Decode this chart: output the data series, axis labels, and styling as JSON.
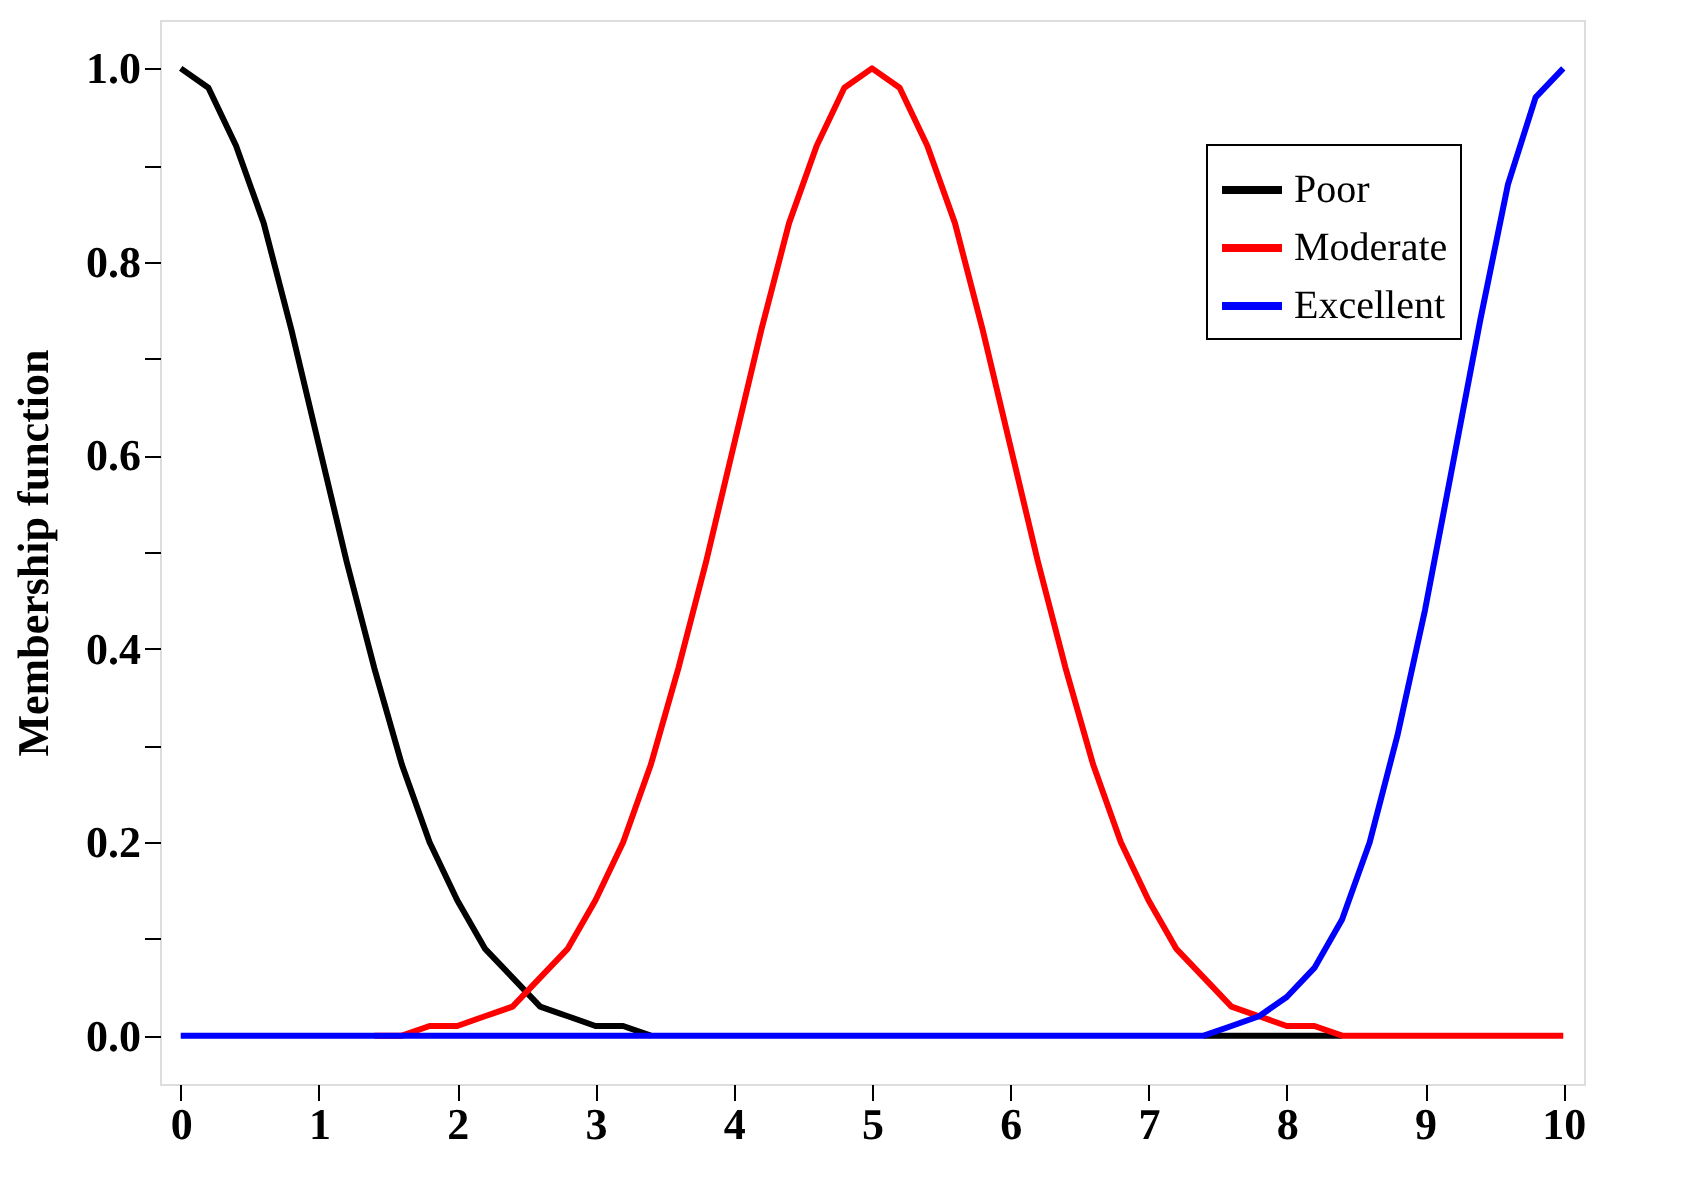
{
  "chart_data": {
    "type": "line",
    "ylabel": "Membership function",
    "x": [
      0,
      0.2,
      0.4,
      0.6,
      0.8,
      1,
      1.2,
      1.4,
      1.6,
      1.8,
      2,
      2.2,
      2.4,
      2.6,
      2.8,
      3,
      3.2,
      3.4,
      3.6,
      3.8,
      4,
      4.2,
      4.4,
      4.6,
      4.8,
      5,
      5.2,
      5.4,
      5.6,
      5.8,
      6,
      6.2,
      6.4,
      6.6,
      6.8,
      7,
      7.2,
      7.4,
      7.6,
      7.8,
      8,
      8.2,
      8.4,
      8.6,
      8.8,
      9,
      9.2,
      9.4,
      9.6,
      9.8,
      10
    ],
    "series": [
      {
        "name": "Poor",
        "color": "#000000",
        "values": [
          1.0,
          0.98,
          0.92,
          0.84,
          0.73,
          0.61,
          0.49,
          0.38,
          0.28,
          0.2,
          0.14,
          0.09,
          0.06,
          0.03,
          0.02,
          0.01,
          0.01,
          0,
          null,
          null,
          null,
          null,
          null,
          null,
          null,
          null,
          null,
          null,
          null,
          null,
          null,
          null,
          null,
          null,
          null,
          null,
          null,
          0,
          0,
          0,
          0,
          0,
          0,
          null,
          null,
          null,
          null,
          null,
          null,
          null,
          null
        ]
      },
      {
        "name": "Moderate",
        "color": "#ff0000",
        "values": [
          null,
          null,
          null,
          null,
          null,
          null,
          null,
          0,
          0,
          0.01,
          0.01,
          0.02,
          0.03,
          0.06,
          0.09,
          0.14,
          0.2,
          0.28,
          0.38,
          0.49,
          0.61,
          0.73,
          0.84,
          0.92,
          0.98,
          1.0,
          0.98,
          0.92,
          0.84,
          0.73,
          0.61,
          0.49,
          0.38,
          0.28,
          0.2,
          0.14,
          0.09,
          0.06,
          0.03,
          0.02,
          0.01,
          0.01,
          0,
          0,
          0,
          0,
          0,
          0,
          0,
          0,
          0
        ]
      },
      {
        "name": "Excellent",
        "color": "#0000ff",
        "values": [
          0,
          0,
          0,
          0,
          0,
          0,
          0,
          0,
          0,
          0,
          0,
          0,
          0,
          0,
          0,
          0,
          0,
          0,
          0,
          0,
          0,
          0,
          0,
          0,
          0,
          0,
          0,
          0,
          0,
          0,
          0,
          0,
          0,
          0,
          0,
          0,
          0,
          0,
          0.01,
          0.02,
          0.04,
          0.07,
          0.12,
          0.2,
          0.31,
          0.44,
          0.59,
          0.74,
          0.88,
          0.97,
          1.0
        ]
      }
    ],
    "xlim": [
      -0.15,
      10.15
    ],
    "ylim": [
      -0.05,
      1.05
    ],
    "xticks": [
      0,
      1,
      2,
      3,
      4,
      5,
      6,
      7,
      8,
      9,
      10
    ],
    "yticks": [
      {
        "value": 0,
        "label": "0.0"
      },
      {
        "value": 0.1,
        "label": null
      },
      {
        "value": 0.2,
        "label": "0.2"
      },
      {
        "value": 0.3,
        "label": null
      },
      {
        "value": 0.4,
        "label": "0.4"
      },
      {
        "value": 0.5,
        "label": null
      },
      {
        "value": 0.6,
        "label": "0.6"
      },
      {
        "value": 0.7,
        "label": null
      },
      {
        "value": 0.8,
        "label": "0.8"
      },
      {
        "value": 0.9,
        "label": null
      },
      {
        "value": 1,
        "label": "1.0"
      }
    ],
    "legend": "top right",
    "grid": false,
    "line_style": "solid",
    "marker": "none"
  }
}
